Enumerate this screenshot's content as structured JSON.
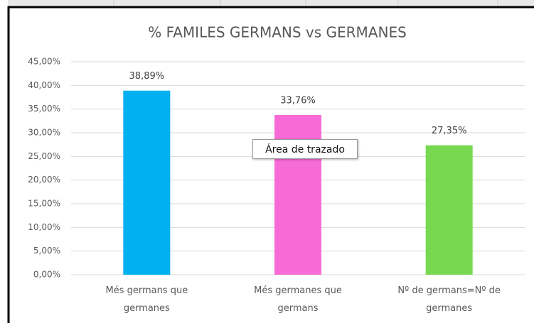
{
  "chart_data": {
    "type": "bar",
    "title": "% FAMILES  GERMANS vs GERMANES",
    "categories": [
      "Més germans que germanes",
      "Més germanes que germans",
      "Nº de germans=Nº de germanes"
    ],
    "values": [
      38.89,
      33.76,
      27.35
    ],
    "value_labels": [
      "38,89%",
      "33,76%",
      "27,35%"
    ],
    "colors": [
      "#00b0f0",
      "#f76bd6",
      "#77d94f"
    ],
    "ylim": [
      0,
      45
    ],
    "yticks": [
      {
        "value": 0,
        "label": "0,00%"
      },
      {
        "value": 5,
        "label": "5,00%"
      },
      {
        "value": 10,
        "label": "10,00%"
      },
      {
        "value": 15,
        "label": "15,00%"
      },
      {
        "value": 20,
        "label": "20,00%"
      },
      {
        "value": 25,
        "label": "25,00%"
      },
      {
        "value": 30,
        "label": "30,00%"
      },
      {
        "value": 35,
        "label": "35,00%"
      },
      {
        "value": 40,
        "label": "40,00%"
      },
      {
        "value": 45,
        "label": "45,00%"
      }
    ],
    "grid": true,
    "tooltip": "Área de trazado"
  }
}
